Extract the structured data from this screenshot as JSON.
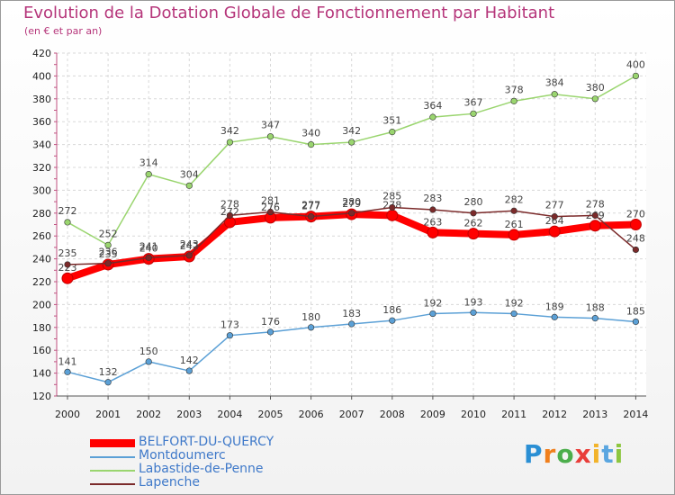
{
  "header": {
    "title": "Evolution de la Dotation Globale de Fonctionnement par Habitant",
    "subtitle": "(en € et par an)"
  },
  "logo": {
    "text": "Proxiti",
    "colors": [
      "#2a8fd4",
      "#f07f1c",
      "#4cae4c",
      "#e93e3a",
      "#f2b32a",
      "#5aa6e0",
      "#8dc63f"
    ]
  },
  "chart_data": {
    "type": "line",
    "title": "Evolution de la Dotation Globale de Fonctionnement par Habitant",
    "subtitle": "(en € et par an)",
    "x": [
      2000,
      2001,
      2002,
      2003,
      2004,
      2005,
      2006,
      2007,
      2008,
      2009,
      2010,
      2011,
      2012,
      2013,
      2014
    ],
    "ylim": [
      120,
      420
    ],
    "yticks": [
      120,
      140,
      160,
      180,
      200,
      220,
      240,
      260,
      280,
      300,
      320,
      340,
      360,
      380,
      400,
      420
    ],
    "grid": true,
    "legend_position": "bottom-left",
    "series": [
      {
        "name": "BELFORT-DU-QUERCY",
        "color": "#ff0000",
        "values": [
          223,
          235,
          240,
          242,
          272,
          276,
          277,
          279,
          278,
          263,
          262,
          261,
          264,
          269,
          270
        ]
      },
      {
        "name": "Montdoumerc",
        "color": "#5ba0d6",
        "values": [
          141,
          132,
          150,
          142,
          173,
          176,
          180,
          183,
          186,
          192,
          193,
          192,
          189,
          188,
          185
        ]
      },
      {
        "name": "Labastide-de-Penne",
        "color": "#9ad56f",
        "values": [
          272,
          252,
          314,
          304,
          342,
          347,
          340,
          342,
          351,
          364,
          367,
          378,
          384,
          380,
          400
        ]
      },
      {
        "name": "Lapenche",
        "color": "#7b2a2a",
        "values": [
          235,
          236,
          241,
          243,
          278,
          281,
          277,
          280,
          285,
          283,
          280,
          282,
          277,
          278,
          248
        ]
      }
    ]
  }
}
